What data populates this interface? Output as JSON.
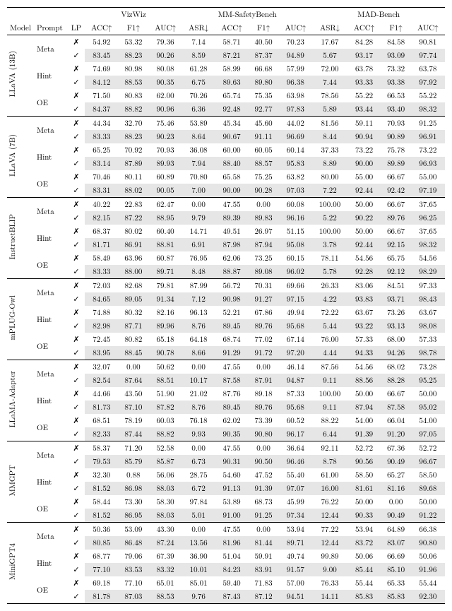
{
  "header": {
    "model": "Model",
    "prompt": "Prompt",
    "lp": "LP",
    "datasets": [
      "VizWiz",
      "MM-SafetyBench",
      "MAD-Bench"
    ],
    "metrics_3": [
      "ACC↑",
      "F1↑",
      "AUC↑"
    ],
    "metrics_4": [
      "ASR↓",
      "ACC↑",
      "F1↑",
      "AUC↑"
    ]
  },
  "lp_off": "✗",
  "lp_on": "✓",
  "models": [
    {
      "name": "LLaVA (13B)",
      "prompts": [
        {
          "label": "Meta",
          "rows": [
            {
              "lp": "off",
              "v": [
                "54.92",
                "53.32",
                "79.36",
                "7.14",
                "58.71",
                "40.50",
                "70.23",
                "17.67",
                "84.28",
                "84.58",
                "90.81"
              ]
            },
            {
              "lp": "on",
              "v": [
                "83.45",
                "88.23",
                "90.26",
                "8.59",
                "87.21",
                "87.37",
                "94.89",
                "5.67",
                "93.17",
                "93.09",
                "97.74"
              ]
            }
          ]
        },
        {
          "label": "Hint",
          "rows": [
            {
              "lp": "off",
              "v": [
                "74.69",
                "80.98",
                "80.08",
                "61.28",
                "58.99",
                "66.68",
                "57.99",
                "72.00",
                "63.78",
                "73.32",
                "63.78"
              ]
            },
            {
              "lp": "on",
              "v": [
                "84.12",
                "88.53",
                "90.35",
                "6.75",
                "89.63",
                "89.80",
                "96.38",
                "7.44",
                "93.33",
                "93.38",
                "97.92"
              ]
            }
          ]
        },
        {
          "label": "OE",
          "rows": [
            {
              "lp": "off",
              "v": [
                "71.50",
                "80.83",
                "62.00",
                "70.26",
                "65.74",
                "75.35",
                "63.98",
                "78.56",
                "55.22",
                "66.53",
                "55.22"
              ]
            },
            {
              "lp": "on",
              "v": [
                "84.37",
                "88.82",
                "90.96",
                "6.36",
                "92.48",
                "92.77",
                "97.83",
                "5.89",
                "93.44",
                "93.40",
                "98.32"
              ]
            }
          ]
        }
      ]
    },
    {
      "name": "LLaVA (7B)",
      "prompts": [
        {
          "label": "Meta",
          "rows": [
            {
              "lp": "off",
              "v": [
                "44.34",
                "32.70",
                "75.46",
                "53.89",
                "45.34",
                "45.60",
                "44.02",
                "81.56",
                "59.11",
                "70.93",
                "91.25"
              ]
            },
            {
              "lp": "on",
              "v": [
                "83.33",
                "88.23",
                "90.23",
                "8.64",
                "90.67",
                "91.11",
                "96.69",
                "8.44",
                "90.94",
                "90.89",
                "96.91"
              ]
            }
          ]
        },
        {
          "label": "Hint",
          "rows": [
            {
              "lp": "off",
              "v": [
                "65.25",
                "70.92",
                "70.93",
                "36.08",
                "60.00",
                "60.05",
                "60.14",
                "37.33",
                "73.22",
                "75.78",
                "73.22"
              ]
            },
            {
              "lp": "on",
              "v": [
                "83.14",
                "87.89",
                "89.93",
                "7.94",
                "88.40",
                "88.57",
                "95.83",
                "8.89",
                "90.00",
                "89.89",
                "96.93"
              ]
            }
          ]
        },
        {
          "label": "OE",
          "rows": [
            {
              "lp": "off",
              "v": [
                "70.46",
                "80.11",
                "60.89",
                "70.80",
                "65.58",
                "75.25",
                "63.82",
                "80.00",
                "55.00",
                "66.67",
                "55.00"
              ]
            },
            {
              "lp": "on",
              "v": [
                "83.31",
                "88.02",
                "90.05",
                "7.00",
                "90.09",
                "90.28",
                "97.03",
                "7.22",
                "92.44",
                "92.42",
                "97.19"
              ]
            }
          ]
        }
      ]
    },
    {
      "name": "InstructBLIP",
      "prompts": [
        {
          "label": "Meta",
          "rows": [
            {
              "lp": "off",
              "v": [
                "40.22",
                "22.83",
                "62.47",
                "0.00",
                "47.55",
                "0.00",
                "60.08",
                "100.00",
                "50.00",
                "66.67",
                "37.65"
              ]
            },
            {
              "lp": "on",
              "v": [
                "82.15",
                "87.22",
                "88.95",
                "9.79",
                "89.39",
                "89.83",
                "96.16",
                "5.22",
                "90.22",
                "89.76",
                "96.25"
              ]
            }
          ]
        },
        {
          "label": "Hint",
          "rows": [
            {
              "lp": "off",
              "v": [
                "68.37",
                "80.02",
                "60.40",
                "14.71",
                "49.51",
                "26.97",
                "51.15",
                "100.00",
                "50.00",
                "66.67",
                "37.65"
              ]
            },
            {
              "lp": "on",
              "v": [
                "81.71",
                "86.91",
                "88.81",
                "6.91",
                "87.98",
                "87.94",
                "95.08",
                "3.78",
                "92.44",
                "92.15",
                "98.32"
              ]
            }
          ]
        },
        {
          "label": "OE",
          "rows": [
            {
              "lp": "off",
              "v": [
                "58.49",
                "63.96",
                "60.87",
                "76.95",
                "62.06",
                "73.25",
                "60.15",
                "78.11",
                "54.56",
                "65.75",
                "54.56"
              ]
            },
            {
              "lp": "on",
              "v": [
                "83.33",
                "88.00",
                "89.71",
                "8.48",
                "88.87",
                "89.08",
                "96.02",
                "5.78",
                "92.28",
                "92.12",
                "98.29"
              ]
            }
          ]
        }
      ]
    },
    {
      "name": "mPLUG-Owl",
      "prompts": [
        {
          "label": "Meta",
          "rows": [
            {
              "lp": "off",
              "v": [
                "72.03",
                "82.68",
                "79.81",
                "87.99",
                "56.72",
                "70.31",
                "69.66",
                "26.33",
                "83.06",
                "84.51",
                "97.33"
              ]
            },
            {
              "lp": "on",
              "v": [
                "84.65",
                "89.05",
                "91.34",
                "7.12",
                "90.98",
                "91.27",
                "97.15",
                "4.22",
                "93.83",
                "93.71",
                "98.43"
              ]
            }
          ]
        },
        {
          "label": "Hint",
          "rows": [
            {
              "lp": "off",
              "v": [
                "74.88",
                "80.32",
                "82.16",
                "96.13",
                "52.21",
                "67.86",
                "49.94",
                "72.22",
                "63.67",
                "73.26",
                "63.67"
              ]
            },
            {
              "lp": "on",
              "v": [
                "82.98",
                "87.71",
                "89.96",
                "8.76",
                "89.45",
                "89.76",
                "95.68",
                "5.44",
                "93.22",
                "93.13",
                "98.08"
              ]
            }
          ]
        },
        {
          "label": "OE",
          "rows": [
            {
              "lp": "off",
              "v": [
                "72.45",
                "80.82",
                "65.18",
                "64.18",
                "68.74",
                "77.02",
                "67.14",
                "76.00",
                "57.33",
                "68.00",
                "57.33"
              ]
            },
            {
              "lp": "on",
              "v": [
                "83.95",
                "88.45",
                "90.78",
                "8.66",
                "91.29",
                "91.72",
                "97.20",
                "4.44",
                "94.33",
                "94.26",
                "98.78"
              ]
            }
          ]
        }
      ]
    },
    {
      "name": "LLaMA-Adapter",
      "prompts": [
        {
          "label": "Meta",
          "rows": [
            {
              "lp": "off",
              "v": [
                "32.07",
                "0.00",
                "50.62",
                "0.00",
                "47.55",
                "0.00",
                "46.14",
                "87.56",
                "54.56",
                "68.02",
                "73.28"
              ]
            },
            {
              "lp": "on",
              "v": [
                "82.54",
                "87.64",
                "88.51",
                "10.17",
                "87.58",
                "87.91",
                "94.87",
                "9.11",
                "88.56",
                "88.28",
                "95.25"
              ]
            }
          ]
        },
        {
          "label": "Hint",
          "rows": [
            {
              "lp": "off",
              "v": [
                "44.66",
                "43.50",
                "51.90",
                "21.02",
                "87.76",
                "89.18",
                "87.33",
                "100.00",
                "50.00",
                "66.67",
                "50.00"
              ]
            },
            {
              "lp": "on",
              "v": [
                "81.73",
                "87.10",
                "87.82",
                "8.76",
                "89.45",
                "89.76",
                "95.68",
                "9.11",
                "87.94",
                "87.58",
                "95.02"
              ]
            }
          ]
        },
        {
          "label": "OE",
          "rows": [
            {
              "lp": "off",
              "v": [
                "68.51",
                "78.19",
                "60.03",
                "76.18",
                "62.02",
                "73.39",
                "60.52",
                "88.22",
                "54.00",
                "66.04",
                "54.00"
              ]
            },
            {
              "lp": "on",
              "v": [
                "82.33",
                "87.44",
                "88.82",
                "9.93",
                "90.35",
                "90.80",
                "96.17",
                "6.44",
                "91.39",
                "91.20",
                "97.05"
              ]
            }
          ]
        }
      ]
    },
    {
      "name": "MMGPT",
      "prompts": [
        {
          "label": "Meta",
          "rows": [
            {
              "lp": "off",
              "v": [
                "58.37",
                "71.20",
                "52.58",
                "0.00",
                "47.55",
                "0.00",
                "36.64",
                "92.11",
                "52.72",
                "67.36",
                "52.72"
              ]
            },
            {
              "lp": "on",
              "v": [
                "79.53",
                "85.79",
                "85.87",
                "6.73",
                "90.31",
                "90.50",
                "96.46",
                "8.78",
                "90.56",
                "90.49",
                "96.67"
              ]
            }
          ]
        },
        {
          "label": "Hint",
          "rows": [
            {
              "lp": "off",
              "v": [
                "32.30",
                "0.88",
                "56.06",
                "28.75",
                "54.60",
                "47.52",
                "55.40",
                "61.00",
                "58.50",
                "65.27",
                "58.50"
              ]
            },
            {
              "lp": "on",
              "v": [
                "81.52",
                "86.98",
                "88.03",
                "6.72",
                "91.13",
                "91.39",
                "97.07",
                "16.00",
                "81.61",
                "81.16",
                "89.68"
              ]
            }
          ]
        },
        {
          "label": "OE",
          "rows": [
            {
              "lp": "off",
              "v": [
                "58.44",
                "73.30",
                "58.30",
                "97.84",
                "53.89",
                "68.73",
                "45.99",
                "76.22",
                "50.00",
                "0.00",
                "50.00"
              ]
            },
            {
              "lp": "on",
              "v": [
                "81.52",
                "86.95",
                "88.03",
                "5.01",
                "91.00",
                "91.25",
                "97.34",
                "12.44",
                "90.33",
                "90.49",
                "91.22"
              ]
            }
          ]
        }
      ]
    },
    {
      "name": "MiniGPT4",
      "prompts": [
        {
          "label": "Meta",
          "rows": [
            {
              "lp": "off",
              "v": [
                "50.36",
                "53.09",
                "43.30",
                "0.00",
                "47.55",
                "0.00",
                "53.94",
                "77.22",
                "53.94",
                "64.89",
                "66.38"
              ]
            },
            {
              "lp": "on",
              "v": [
                "80.85",
                "86.48",
                "87.24",
                "13.56",
                "81.96",
                "81.44",
                "89.71",
                "12.44",
                "83.72",
                "83.07",
                "90.80"
              ]
            }
          ]
        },
        {
          "label": "Hint",
          "rows": [
            {
              "lp": "off",
              "v": [
                "68.77",
                "79.06",
                "67.39",
                "36.90",
                "51.04",
                "59.91",
                "49.74",
                "99.89",
                "50.06",
                "66.69",
                "50.06"
              ]
            },
            {
              "lp": "on",
              "v": [
                "77.10",
                "83.53",
                "83.32",
                "10.01",
                "84.23",
                "83.91",
                "91.57",
                "9.00",
                "85.44",
                "85.10",
                "91.96"
              ]
            }
          ]
        },
        {
          "label": "OE",
          "rows": [
            {
              "lp": "off",
              "v": [
                "69.18",
                "77.10",
                "65.01",
                "85.01",
                "59.40",
                "71.83",
                "57.00",
                "76.33",
                "55.44",
                "65.33",
                "55.44"
              ]
            },
            {
              "lp": "on",
              "v": [
                "81.78",
                "87.03",
                "88.53",
                "9.76",
                "87.43",
                "87.12",
                "94.51",
                "14.11",
                "85.83",
                "85.83",
                "92.30"
              ]
            }
          ]
        }
      ]
    }
  ]
}
